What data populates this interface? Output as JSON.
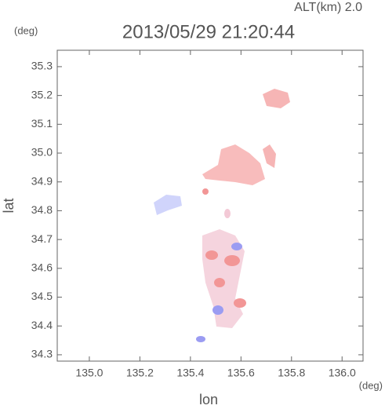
{
  "chart_data": {
    "type": "map",
    "title": "2013/05/29 21:20:44",
    "annotation": "ALT(km) 2.0",
    "xlabel": "lon",
    "ylabel": "lat",
    "xunit": "(deg)",
    "yunit": "(deg)",
    "xlim": [
      134.873,
      136.083
    ],
    "ylim": [
      34.278,
      35.357
    ],
    "xticks": [
      {
        "value": 135,
        "label": "135.0"
      },
      135.2,
      135.4,
      135.6,
      135.8,
      {
        "value": 136,
        "label": "136.0"
      }
    ],
    "yticks": [
      35.3,
      35.2,
      35.1,
      {
        "value": 35,
        "label": "35.0"
      },
      34.9,
      34.8,
      34.7,
      34.6,
      34.5,
      34.4,
      34.3
    ]
  }
}
